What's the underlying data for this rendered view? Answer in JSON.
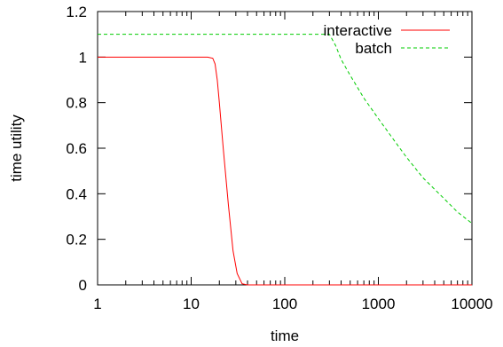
{
  "chart_data": {
    "type": "line",
    "xlabel": "time",
    "ylabel": "time utility",
    "xscale": "log",
    "xlim": [
      1,
      10000
    ],
    "ylim": [
      0,
      1.2
    ],
    "x_ticks": [
      1,
      10,
      100,
      1000,
      10000
    ],
    "x_tick_labels": [
      "1",
      "10",
      "100",
      "1000",
      "10000"
    ],
    "y_ticks": [
      0,
      0.2,
      0.4,
      0.6,
      0.8,
      1,
      1.2
    ],
    "y_tick_labels": [
      "0",
      "0.2",
      "0.4",
      "0.6",
      "0.8",
      "1",
      "1.2"
    ],
    "grid": false,
    "legend_position": "top-right",
    "series": [
      {
        "name": "interactive",
        "color": "#ff0000",
        "dash": "solid",
        "points": [
          [
            1,
            1
          ],
          [
            5,
            1
          ],
          [
            10,
            1
          ],
          [
            15,
            1
          ],
          [
            17,
            0.995
          ],
          [
            18,
            0.97
          ],
          [
            19,
            0.9
          ],
          [
            20,
            0.8
          ],
          [
            22,
            0.6
          ],
          [
            25,
            0.35
          ],
          [
            28,
            0.15
          ],
          [
            31,
            0.05
          ],
          [
            35,
            0.005
          ],
          [
            40,
            0
          ],
          [
            100,
            0
          ],
          [
            10000,
            0
          ]
        ]
      },
      {
        "name": "batch",
        "color": "#00cc00",
        "dash": "dashed",
        "points": [
          [
            1,
            1.1
          ],
          [
            10,
            1.1
          ],
          [
            100,
            1.1
          ],
          [
            300,
            1.1
          ],
          [
            350,
            1.05
          ],
          [
            400,
            0.99
          ],
          [
            500,
            0.92
          ],
          [
            700,
            0.82
          ],
          [
            1000,
            0.73
          ],
          [
            1500,
            0.63
          ],
          [
            2000,
            0.56
          ],
          [
            3000,
            0.47
          ],
          [
            5000,
            0.38
          ],
          [
            7000,
            0.32
          ],
          [
            10000,
            0.27
          ]
        ]
      }
    ]
  }
}
